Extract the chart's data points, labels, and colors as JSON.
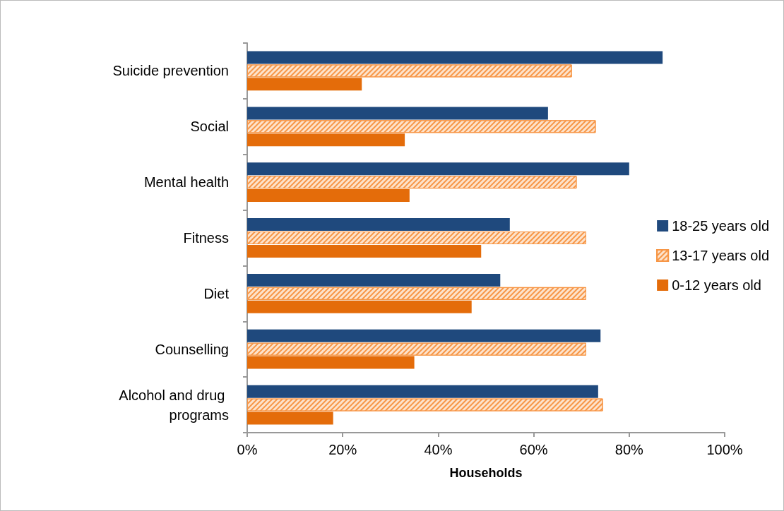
{
  "chart_data": {
    "type": "bar",
    "orientation": "horizontal",
    "xlabel": "Households",
    "categories": [
      "Suicide prevention",
      "Social",
      "Mental health",
      "Fitness",
      "Diet",
      "Counselling",
      "Alcohol and drug programs"
    ],
    "series": [
      {
        "name": "18-25 years old",
        "color": "#1f497d",
        "values": [
          87,
          63,
          80,
          55,
          53,
          74,
          73.5
        ]
      },
      {
        "name": "13-17 years old",
        "color": "#f79646",
        "values": [
          68,
          73,
          69,
          71,
          71,
          71,
          74.5
        ]
      },
      {
        "name": "0-12 years old",
        "color": "#e46c0a",
        "values": [
          24,
          33,
          34,
          49,
          47,
          35,
          18
        ]
      }
    ],
    "xlim": [
      0,
      100
    ],
    "xticks": [
      {
        "value": 0,
        "label": "0%"
      },
      {
        "value": 20,
        "label": "20%"
      },
      {
        "value": 40,
        "label": "40%"
      },
      {
        "value": 60,
        "label": "60%"
      },
      {
        "value": 80,
        "label": "80%"
      },
      {
        "value": 100,
        "label": "100%"
      }
    ],
    "grid": false,
    "legend": "right"
  }
}
